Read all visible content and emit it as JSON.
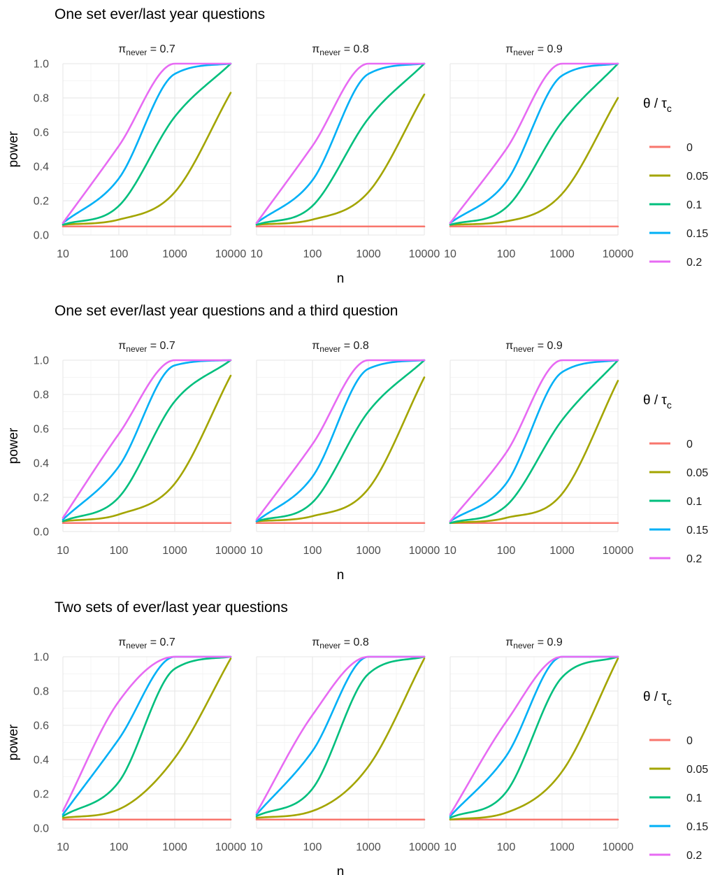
{
  "chart_data": [
    {
      "type": "line",
      "title": "One set ever/last year questions",
      "xlabel": "n",
      "ylabel": "power",
      "xscale": "log10",
      "xlim": [
        10,
        10000
      ],
      "ylim": [
        0.0,
        1.0
      ],
      "xticks": [
        "10",
        "100",
        "1000",
        "10000"
      ],
      "yticks": [
        "0.0",
        "0.2",
        "0.4",
        "0.6",
        "0.8",
        "1.0"
      ],
      "grid": true,
      "legend_position": "right",
      "legend_title": "θ / τc",
      "x": [
        10,
        100,
        1000,
        10000
      ],
      "facets": [
        {
          "label": "πnever = 0.7",
          "series": [
            {
              "name": "0",
              "values": [
                0.05,
                0.05,
                0.05,
                0.05
              ]
            },
            {
              "name": "0.05",
              "values": [
                0.06,
                0.09,
                0.25,
                0.83
              ]
            },
            {
              "name": "0.1",
              "values": [
                0.06,
                0.17,
                0.69,
                1.0
              ]
            },
            {
              "name": "0.15",
              "values": [
                0.07,
                0.33,
                0.94,
                1.0
              ]
            },
            {
              "name": "0.2",
              "values": [
                0.07,
                0.52,
                1.0,
                1.0
              ]
            }
          ]
        },
        {
          "label": "πnever = 0.8",
          "series": [
            {
              "name": "0",
              "values": [
                0.05,
                0.05,
                0.05,
                0.05
              ]
            },
            {
              "name": "0.05",
              "values": [
                0.06,
                0.09,
                0.25,
                0.82
              ]
            },
            {
              "name": "0.1",
              "values": [
                0.06,
                0.17,
                0.68,
                1.0
              ]
            },
            {
              "name": "0.15",
              "values": [
                0.07,
                0.32,
                0.94,
                1.0
              ]
            },
            {
              "name": "0.2",
              "values": [
                0.07,
                0.52,
                1.0,
                1.0
              ]
            }
          ]
        },
        {
          "label": "πnever = 0.9",
          "series": [
            {
              "name": "0",
              "values": [
                0.05,
                0.05,
                0.05,
                0.05
              ]
            },
            {
              "name": "0.05",
              "values": [
                0.06,
                0.08,
                0.24,
                0.8
              ]
            },
            {
              "name": "0.1",
              "values": [
                0.06,
                0.16,
                0.66,
                1.0
              ]
            },
            {
              "name": "0.15",
              "values": [
                0.07,
                0.31,
                0.93,
                1.0
              ]
            },
            {
              "name": "0.2",
              "values": [
                0.07,
                0.5,
                1.0,
                1.0
              ]
            }
          ]
        }
      ]
    },
    {
      "type": "line",
      "title": "One set ever/last year questions and a third question",
      "xlabel": "n",
      "ylabel": "power",
      "xscale": "log10",
      "xlim": [
        10,
        10000
      ],
      "ylim": [
        0.0,
        1.0
      ],
      "xticks": [
        "10",
        "100",
        "1000",
        "10000"
      ],
      "yticks": [
        "0.0",
        "0.2",
        "0.4",
        "0.6",
        "0.8",
        "1.0"
      ],
      "grid": true,
      "legend_position": "right",
      "legend_title": "θ / τc",
      "x": [
        10,
        100,
        1000,
        10000
      ],
      "facets": [
        {
          "label": "πnever = 0.7",
          "series": [
            {
              "name": "0",
              "values": [
                0.05,
                0.05,
                0.05,
                0.05
              ]
            },
            {
              "name": "0.05",
              "values": [
                0.06,
                0.1,
                0.28,
                0.91
              ]
            },
            {
              "name": "0.1",
              "values": [
                0.06,
                0.2,
                0.76,
                1.0
              ]
            },
            {
              "name": "0.15",
              "values": [
                0.07,
                0.38,
                0.97,
                1.0
              ]
            },
            {
              "name": "0.2",
              "values": [
                0.08,
                0.57,
                1.0,
                1.0
              ]
            }
          ]
        },
        {
          "label": "πnever = 0.8",
          "series": [
            {
              "name": "0",
              "values": [
                0.05,
                0.05,
                0.05,
                0.05
              ]
            },
            {
              "name": "0.05",
              "values": [
                0.06,
                0.09,
                0.25,
                0.9
              ]
            },
            {
              "name": "0.1",
              "values": [
                0.06,
                0.17,
                0.7,
                1.0
              ]
            },
            {
              "name": "0.15",
              "values": [
                0.06,
                0.32,
                0.95,
                1.0
              ]
            },
            {
              "name": "0.2",
              "values": [
                0.07,
                0.51,
                1.0,
                1.0
              ]
            }
          ]
        },
        {
          "label": "πnever = 0.9",
          "series": [
            {
              "name": "0",
              "values": [
                0.05,
                0.05,
                0.05,
                0.05
              ]
            },
            {
              "name": "0.05",
              "values": [
                0.05,
                0.08,
                0.22,
                0.88
              ]
            },
            {
              "name": "0.1",
              "values": [
                0.05,
                0.15,
                0.65,
                1.0
              ]
            },
            {
              "name": "0.15",
              "values": [
                0.06,
                0.28,
                0.93,
                1.0
              ]
            },
            {
              "name": "0.2",
              "values": [
                0.06,
                0.46,
                1.0,
                1.0
              ]
            }
          ]
        }
      ]
    },
    {
      "type": "line",
      "title": "Two sets of ever/last year questions",
      "xlabel": "n",
      "ylabel": "power",
      "xscale": "log10",
      "xlim": [
        10,
        10000
      ],
      "ylim": [
        0.0,
        1.0
      ],
      "xticks": [
        "10",
        "100",
        "1000",
        "10000"
      ],
      "yticks": [
        "0.0",
        "0.2",
        "0.4",
        "0.6",
        "0.8",
        "1.0"
      ],
      "grid": true,
      "legend_position": "right",
      "legend_title": "θ / τc",
      "x": [
        10,
        100,
        1000,
        10000
      ],
      "facets": [
        {
          "label": "πnever = 0.7",
          "series": [
            {
              "name": "0",
              "values": [
                0.05,
                0.05,
                0.05,
                0.05
              ]
            },
            {
              "name": "0.05",
              "values": [
                0.06,
                0.11,
                0.41,
                0.99
              ]
            },
            {
              "name": "0.1",
              "values": [
                0.07,
                0.27,
                0.93,
                1.0
              ]
            },
            {
              "name": "0.15",
              "values": [
                0.08,
                0.52,
                1.0,
                1.0
              ]
            },
            {
              "name": "0.2",
              "values": [
                0.1,
                0.74,
                1.0,
                1.0
              ]
            }
          ]
        },
        {
          "label": "πnever = 0.8",
          "series": [
            {
              "name": "0",
              "values": [
                0.05,
                0.05,
                0.05,
                0.05
              ]
            },
            {
              "name": "0.05",
              "values": [
                0.06,
                0.1,
                0.36,
                0.99
              ]
            },
            {
              "name": "0.1",
              "values": [
                0.07,
                0.23,
                0.9,
                1.0
              ]
            },
            {
              "name": "0.15",
              "values": [
                0.08,
                0.45,
                1.0,
                1.0
              ]
            },
            {
              "name": "0.2",
              "values": [
                0.09,
                0.66,
                1.0,
                1.0
              ]
            }
          ]
        },
        {
          "label": "πnever = 0.9",
          "series": [
            {
              "name": "0",
              "values": [
                0.05,
                0.05,
                0.05,
                0.05
              ]
            },
            {
              "name": "0.05",
              "values": [
                0.05,
                0.09,
                0.33,
                0.99
              ]
            },
            {
              "name": "0.1",
              "values": [
                0.06,
                0.21,
                0.88,
                1.0
              ]
            },
            {
              "name": "0.15",
              "values": [
                0.07,
                0.42,
                1.0,
                1.0
              ]
            },
            {
              "name": "0.2",
              "values": [
                0.08,
                0.62,
                1.0,
                1.0
              ]
            }
          ]
        }
      ]
    }
  ],
  "strip": {
    "symbol": "π",
    "subscript": "never",
    "values": [
      "0.7",
      "0.8",
      "0.9"
    ]
  },
  "legend": {
    "title_symbol": "θ / τ",
    "title_subscript": "c",
    "items": [
      "0",
      "0.05",
      "0.1",
      "0.15",
      "0.2"
    ]
  },
  "colors": {
    "0": "#F8766D",
    "0.05": "#A3A500",
    "0.1": "#00BF7D",
    "0.15": "#00B0F6",
    "0.2": "#E76BF3"
  }
}
